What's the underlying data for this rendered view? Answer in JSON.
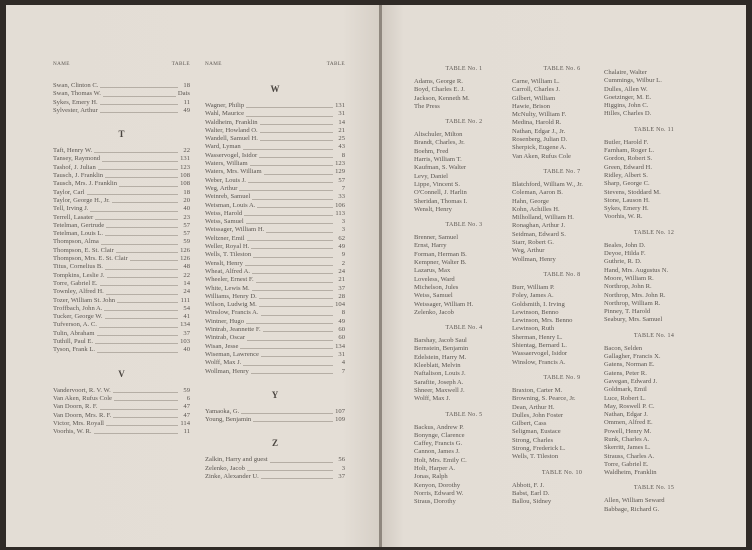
{
  "header": {
    "name_label": "NAME",
    "table_label": "TABLE"
  },
  "left_page": {
    "columns": [
      {
        "sections": [
          {
            "letter": "",
            "entries": [
              {
                "name": "Swan, Clinton C.",
                "table": "18"
              },
              {
                "name": "Swan, Thomas W.",
                "table": "Dais"
              },
              {
                "name": "Sykes, Emery H.",
                "table": "11"
              },
              {
                "name": "Sylvester, Arthur",
                "table": "49"
              }
            ]
          },
          {
            "letter": "T",
            "entries": [
              {
                "name": "Taft, Henry W.",
                "table": "22"
              },
              {
                "name": "Tansey, Raymond",
                "table": "131"
              },
              {
                "name": "Tashof, J. Julian",
                "table": "123"
              },
              {
                "name": "Tausch, J. Franklin",
                "table": "108"
              },
              {
                "name": "Tausch, Mrs. J. Franklin",
                "table": "108"
              },
              {
                "name": "Taylor, Carl",
                "table": "18"
              },
              {
                "name": "Taylor, George H., Jr.",
                "table": "20"
              },
              {
                "name": "Tell, Irving J.",
                "table": "40"
              },
              {
                "name": "Terrell, Lasater",
                "table": "23"
              },
              {
                "name": "Tetelman, Gertrude",
                "table": "57"
              },
              {
                "name": "Tetelman, Louis L.",
                "table": "57"
              },
              {
                "name": "Thompson, Alma",
                "table": "59"
              },
              {
                "name": "Thompson, E. St. Clair",
                "table": "126"
              },
              {
                "name": "Thompson, Mrs. E. St. Clair",
                "table": "126"
              },
              {
                "name": "Titus, Cornelius B.",
                "table": "48"
              },
              {
                "name": "Tompkins, Leslie J.",
                "table": "22"
              },
              {
                "name": "Torre, Gabriel E.",
                "table": "14"
              },
              {
                "name": "Townley, Alfred H.",
                "table": "24"
              },
              {
                "name": "Tozer, William St. John",
                "table": "111"
              },
              {
                "name": "Troffbach, John A.",
                "table": "54"
              },
              {
                "name": "Tucker, George W.",
                "table": "41"
              },
              {
                "name": "Tufverson, A. C.",
                "table": "134"
              },
              {
                "name": "Tulin, Abraham",
                "table": "37"
              },
              {
                "name": "Tuthill, Paul E.",
                "table": "103"
              },
              {
                "name": "Tyson, Frank L.",
                "table": "40"
              }
            ]
          },
          {
            "letter": "V",
            "entries": [
              {
                "name": "Vandervoort, R. V. W.",
                "table": "59"
              },
              {
                "name": "Van Aken, Rufus Cole",
                "table": "6"
              },
              {
                "name": "Van Doorn, R. F.",
                "table": "47"
              },
              {
                "name": "Van Doorn, Mrs. R. F.",
                "table": "47"
              },
              {
                "name": "Victor, Mrs. Royall",
                "table": "114"
              },
              {
                "name": "Voorhis, W. R.",
                "table": "11"
              }
            ]
          }
        ]
      },
      {
        "sections": [
          {
            "letter": "W",
            "entries": [
              {
                "name": "Wagner, Philip",
                "table": "131"
              },
              {
                "name": "Wahl, Maurice",
                "table": "31"
              },
              {
                "name": "Waldheim, Franklin",
                "table": "14"
              },
              {
                "name": "Walter, Howland O.",
                "table": "21"
              },
              {
                "name": "Wandell, Samuel H.",
                "table": "25"
              },
              {
                "name": "Ward, Lyman",
                "table": "43"
              },
              {
                "name": "Wasservogel, Isidor",
                "table": "8"
              },
              {
                "name": "Waters, William",
                "table": "123"
              },
              {
                "name": "Waters, Mrs. William",
                "table": "129"
              },
              {
                "name": "Weber, Louis J.",
                "table": "57"
              },
              {
                "name": "Weg, Arthur",
                "table": "7"
              },
              {
                "name": "Weinreb, Samuel",
                "table": "33"
              },
              {
                "name": "Weisman, Louis A.",
                "table": "106"
              },
              {
                "name": "Weiss, Harold",
                "table": "113"
              },
              {
                "name": "Weiss, Samuel",
                "table": "3"
              },
              {
                "name": "Weissager, William H.",
                "table": "3"
              },
              {
                "name": "Weltzner, Emil",
                "table": "62"
              },
              {
                "name": "Weller, Royal H.",
                "table": "49"
              },
              {
                "name": "Wells, T. Tileston",
                "table": "9"
              },
              {
                "name": "Wenslt, Henry",
                "table": "2"
              },
              {
                "name": "Wheat, Alfred A.",
                "table": "24"
              },
              {
                "name": "Wheeler, Ernest F.",
                "table": "21"
              },
              {
                "name": "White, Lewis M.",
                "table": "37"
              },
              {
                "name": "Williams, Henry D.",
                "table": "28"
              },
              {
                "name": "Wilson, Ludwig M.",
                "table": "104"
              },
              {
                "name": "Winslow, Francis A.",
                "table": "8"
              },
              {
                "name": "Wintner, Hugo",
                "table": "49"
              },
              {
                "name": "Wintrab, Jeannette F.",
                "table": "60"
              },
              {
                "name": "Wintrab, Oscar",
                "table": "60"
              },
              {
                "name": "Wisan, Jesse",
                "table": "134"
              },
              {
                "name": "Wiseman, Lawrence",
                "table": "31"
              },
              {
                "name": "Wolff, Max J.",
                "table": "4"
              },
              {
                "name": "Wollman, Henry",
                "table": "7"
              }
            ]
          },
          {
            "letter": "Y",
            "entries": [
              {
                "name": "Yamaoka, G.",
                "table": "107"
              },
              {
                "name": "Young, Benjamin",
                "table": "109"
              }
            ]
          },
          {
            "letter": "Z",
            "entries": [
              {
                "name": "Zalkin, Harry and guest",
                "table": "56"
              },
              {
                "name": "Zelenko, Jacob",
                "table": "3"
              },
              {
                "name": "Zinke, Alexander U.",
                "table": "37"
              }
            ]
          }
        ]
      }
    ]
  },
  "right_page": {
    "columns": [
      {
        "groups": [
          {
            "heading": "TABLE No. 1",
            "names": [
              "Adams, George R.",
              "Boyd, Charles E. J.",
              "Jackson, Kenneth M.",
              "The Press"
            ]
          },
          {
            "heading": "TABLE No. 2",
            "names": [
              "Altschuler, Milton",
              "Brandt, Charles, Jr.",
              "Boehm, Fred",
              "Harris, William T.",
              "Kaufman, S. Walter",
              "Levy, Daniel",
              "Lippe, Vincent S.",
              "O'Connell, J. Harlin",
              "Sheridan, Thomas I.",
              "Wenslt, Henry"
            ]
          },
          {
            "heading": "TABLE No. 3",
            "names": [
              "Brenner, Samuel",
              "Ernst, Harry",
              "Forman, Herman B.",
              "Kempner, Walter B.",
              "Lazarus, Max",
              "Loveless, Ward",
              "Michelson, Jules",
              "Weiss, Samuel",
              "Weissager, William H.",
              "Zelenko, Jacob"
            ]
          },
          {
            "heading": "TABLE No. 4",
            "names": [
              "Barshay, Jacob Saul",
              "Bernstein, Benjamin",
              "Edelstein, Harry M.",
              "Kleeblatt, Melvin",
              "Naftalison, Louis J.",
              "Sarafite, Joseph A.",
              "Shneer, Maxwell J.",
              "Wolff, Max J."
            ]
          },
          {
            "heading": "TABLE No. 5",
            "names": [
              "Backus, Andrew P.",
              "Bonynge, Clarence",
              "Caffey, Francis G.",
              "Cannon, James J.",
              "Holt, Mrs. Emily C.",
              "Holt, Harper A.",
              "Jonas, Ralph",
              "Kenyon, Dorothy",
              "Norris, Edward W.",
              "Straus, Dorothy"
            ]
          }
        ]
      },
      {
        "groups": [
          {
            "heading": "TABLE No. 6",
            "names": [
              "Carne, William L.",
              "Carroll, Charles J.",
              "Gilbert, William",
              "Hawie, Brison",
              "McNulty, William F.",
              "Medina, Harold R.",
              "Nathan, Edgar J., Jr.",
              "Rosenberg, Julian D.",
              "Sherpick, Eugene A.",
              "Van Aken, Rufus Cole"
            ]
          },
          {
            "heading": "TABLE No. 7",
            "names": [
              "Blatchford, William W., Jr.",
              "Coleman, Aaron B.",
              "Hahn, George",
              "Kohn, Achilles H.",
              "Milholland, William H.",
              "Ronaghan, Arthur J.",
              "Seidman, Edward S.",
              "Starr, Robert G.",
              "Weg, Arthur",
              "Wollman, Henry"
            ]
          },
          {
            "heading": "TABLE No. 8",
            "names": [
              "Burr, William P.",
              "Foley, James A.",
              "Goldsmith, I. Irving",
              "Lewinson, Benno",
              "Lewinson, Mrs. Benno",
              "Lewinson, Ruth",
              "Sherman, Henry L.",
              "Shientag, Bernard L.",
              "Wassaervogel, Isidor",
              "Winslow, Francis A."
            ]
          },
          {
            "heading": "TABLE No. 9",
            "names": [
              "Braxton, Carter M.",
              "Browning, S. Pearce, Jr.",
              "Dean, Arthur H.",
              "Dulles, John Foster",
              "Gilbert, Cass",
              "Seligman, Eustace",
              "Strong, Charles",
              "Strong, Frederick L.",
              "Wells, T. Tileston"
            ]
          },
          {
            "heading": "TABLE No. 10",
            "names": [
              "Abbott, F. J.",
              "Babst, Earl D.",
              "Ballou, Sidney"
            ]
          }
        ]
      },
      {
        "groups": [
          {
            "heading": "",
            "names": [
              "Chalaire, Walter",
              "Cummings, Wilbur L.",
              "Dulles, Allen W.",
              "Goetzinger, M. E.",
              "Higgins, John C.",
              "Hilles, Charles D."
            ]
          },
          {
            "heading": "TABLE No. 11",
            "names": [
              "Butler, Harold F.",
              "Farnham, Roger L.",
              "Gordon, Robert S.",
              "Green, Edward H.",
              "Ridley, Albert S.",
              "Sharp, George C.",
              "Stevens, Stoddard M.",
              "Stone, Lauson H.",
              "Sykes, Emery H.",
              "Voorhis, W. R."
            ]
          },
          {
            "heading": "TABLE No. 12",
            "names": [
              "Beales, John D.",
              "Deyoe, Hilda F.",
              "Guthrie, R. D.",
              "Hand, Mrs. Augustus N.",
              "Moore, William R.",
              "Northrop, John R.",
              "Northrop, Mrs. John R.",
              "Northrop, William R.",
              "Pinney, T. Harold",
              "Seabury, Mrs. Samuel"
            ]
          },
          {
            "heading": "TABLE No. 14",
            "names": [
              "Bacon, Selden",
              "Gallagher, Francis X.",
              "Gatens, Norman E.",
              "Gatens, Peter R.",
              "Gavegan, Edward J.",
              "Goldmark, Emil",
              "Luce, Robert L.",
              "May, Roswell P. C.",
              "Nathan, Edgar J.",
              "Ommen, Alfred E.",
              "Powell, Henry M.",
              "Runk, Charles A.",
              "Skerritt, James L.",
              "Strauss, Charles A.",
              "Torre, Gabriel E.",
              "Waldheim, Franklin"
            ]
          },
          {
            "heading": "TABLE No. 15",
            "names": [
              "Allen, William Seward",
              "Babbage, Richard G."
            ]
          }
        ]
      }
    ]
  }
}
